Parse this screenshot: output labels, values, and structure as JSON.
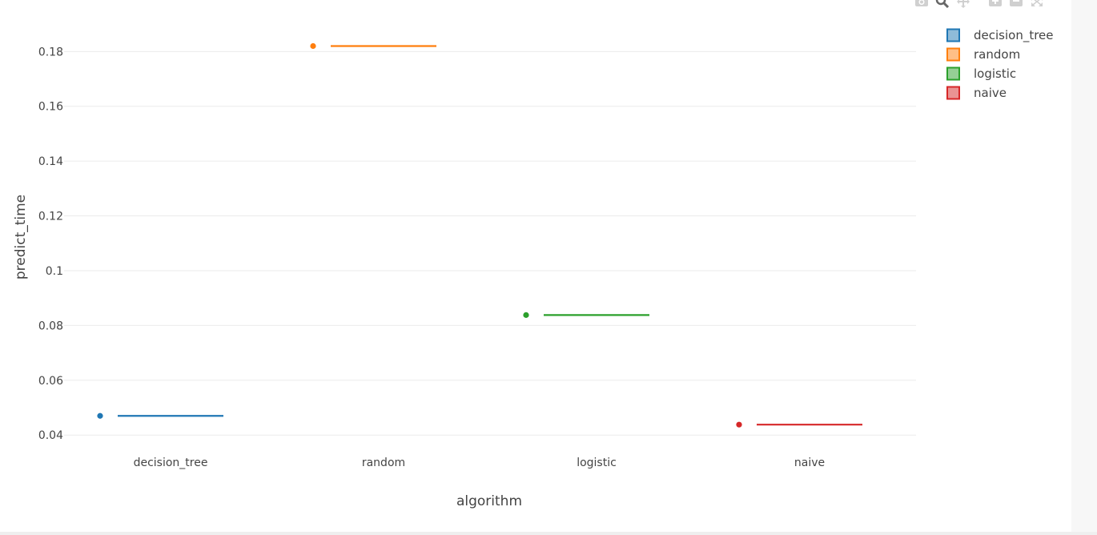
{
  "chart_data": {
    "type": "box",
    "xlabel": "algorithm",
    "ylabel": "predict_time",
    "categories": [
      "decision_tree",
      "random",
      "logistic",
      "naive"
    ],
    "series": [
      {
        "name": "decision_tree",
        "category": "decision_tree",
        "values": [
          0.047
        ],
        "color": "#1f77b4"
      },
      {
        "name": "random",
        "category": "random",
        "values": [
          0.182
        ],
        "color": "#ff7f0e"
      },
      {
        "name": "logistic",
        "category": "logistic",
        "values": [
          0.0838
        ],
        "color": "#2ca02c"
      },
      {
        "name": "naive",
        "category": "naive",
        "values": [
          0.0438
        ],
        "color": "#d62728"
      }
    ],
    "yticks": [
      "0.04",
      "0.06",
      "0.08",
      "0.1",
      "0.12",
      "0.14",
      "0.16",
      "0.18"
    ],
    "ytick_values": [
      0.04,
      0.06,
      0.08,
      0.1,
      0.12,
      0.14,
      0.16,
      0.18
    ],
    "ylim": [
      0.0345,
      0.1915
    ],
    "grid": true,
    "legend_position": "top-right"
  },
  "modebar": {
    "icons": [
      "camera-icon",
      "zoom-icon",
      "pan-icon",
      "zoom-in-icon",
      "zoom-out-icon",
      "autoscale-icon"
    ]
  }
}
